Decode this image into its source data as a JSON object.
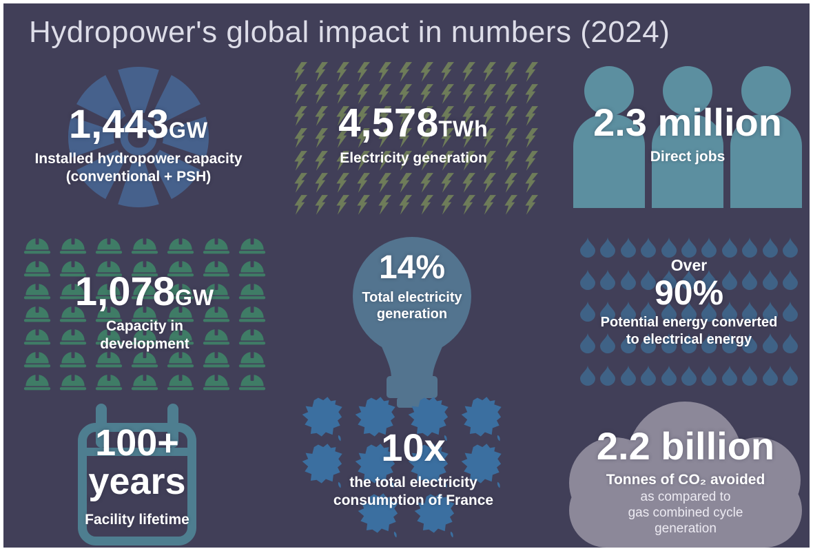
{
  "title": "Hydropower's global impact in numbers (2024)",
  "colors": {
    "bg": "#413F58",
    "title": "#DDDDE8",
    "turbine": "#46618C",
    "bolt": "#6E7C59",
    "person": "#5C8FA0",
    "helmet": "#3F7C66",
    "bulb": "#53748F",
    "drop": "#3F6286",
    "calendar": "#4E7E90",
    "france": "#3B6FA0",
    "cloud": "#8C8899"
  },
  "panels": {
    "capacity": {
      "value": "1,443",
      "unit": "GW",
      "label_line1": "Installed hydropower capacity",
      "label_line2": "(conventional + PSH)"
    },
    "generation": {
      "value": "4,578",
      "unit": "TWh",
      "label": "Electricity generation",
      "grid": {
        "rows": 7,
        "cols": 12
      }
    },
    "jobs": {
      "value": "2.3 million",
      "label": "Direct jobs",
      "person_count": 3
    },
    "development": {
      "value": "1,078",
      "unit": "GW",
      "label_line1": "Capacity in",
      "label_line2": "development",
      "grid": {
        "rows": 7,
        "cols": 7
      }
    },
    "share": {
      "value": "14%",
      "label_line1": "Total electricity",
      "label_line2": "generation"
    },
    "efficiency": {
      "pre": "Over",
      "value": "90%",
      "label_line1": "Potential energy converted",
      "label_line2": "to electrical energy",
      "grid": {
        "rows": 5,
        "cols": 11
      }
    },
    "lifetime": {
      "value_line1": "100+",
      "value_line2": "years",
      "label": "Facility lifetime"
    },
    "france": {
      "value": "10x",
      "label_line1": "the total electricity",
      "label_line2": "consumption of France",
      "map_count": 10
    },
    "co2": {
      "value": "2.2 billion",
      "label_bold": "Tonnes of CO₂ avoided",
      "label_line2": "as compared to",
      "label_line3": "gas combined cycle",
      "label_line4": "generation"
    }
  },
  "chart_data": {
    "type": "table",
    "title": "Hydropower's global impact in numbers (2024)",
    "items": [
      {
        "metric": "Installed hydropower capacity (conventional + PSH)",
        "value": 1443,
        "unit": "GW"
      },
      {
        "metric": "Electricity generation",
        "value": 4578,
        "unit": "TWh"
      },
      {
        "metric": "Direct jobs",
        "value": 2.3,
        "unit": "million"
      },
      {
        "metric": "Capacity in development",
        "value": 1078,
        "unit": "GW"
      },
      {
        "metric": "Share of total electricity generation",
        "value": 14,
        "unit": "%"
      },
      {
        "metric": "Potential energy converted to electrical energy",
        "value": "over 90",
        "unit": "%"
      },
      {
        "metric": "Facility lifetime",
        "value": "100+",
        "unit": "years"
      },
      {
        "metric": "Multiple of the total electricity consumption of France",
        "value": 10,
        "unit": "x"
      },
      {
        "metric": "Tonnes of CO₂ avoided vs gas combined cycle generation",
        "value": 2.2,
        "unit": "billion"
      }
    ]
  }
}
